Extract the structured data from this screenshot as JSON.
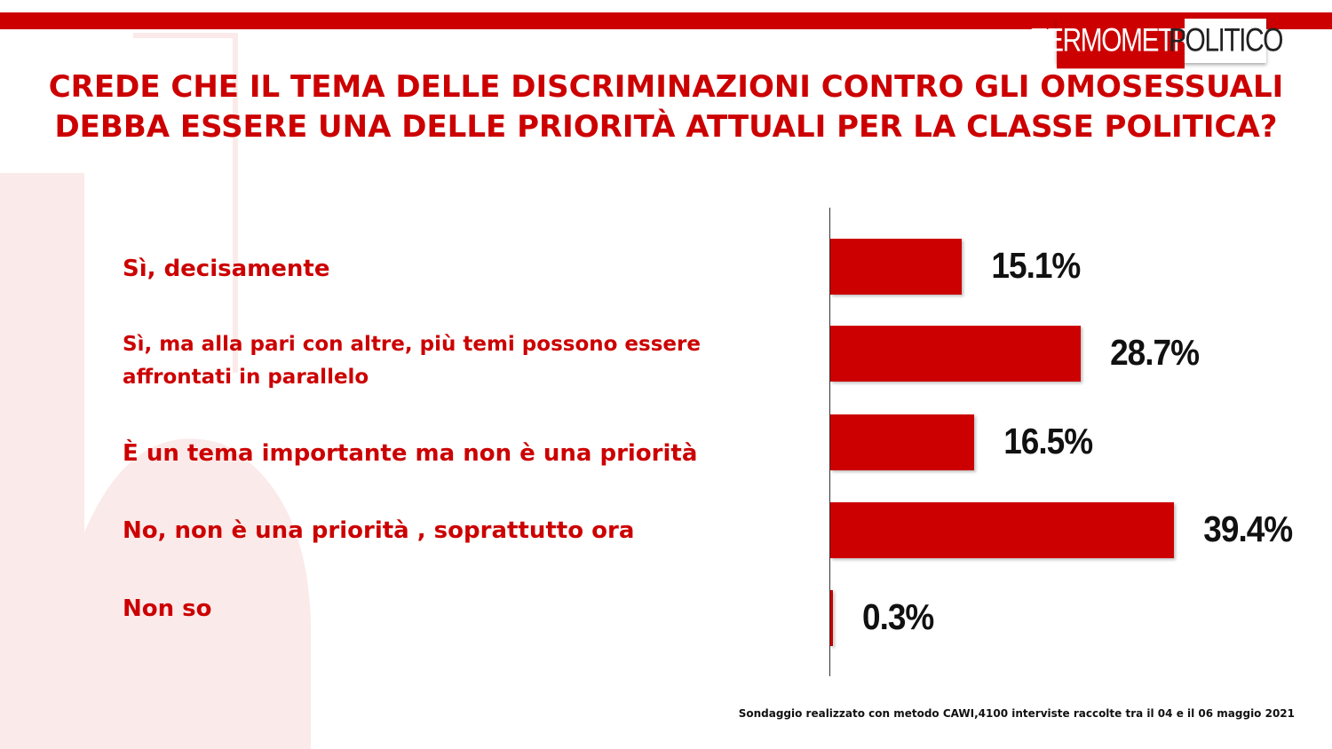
{
  "brand": {
    "logo_part1": "TERMOMETRO",
    "logo_part2": "POLITICO",
    "accent_color": "#cc0000"
  },
  "footnote": "Sondaggio realizzato con metodo CAWI,4100 interviste raccolte tra il 04 e il 06 maggio 2021",
  "chart_data": {
    "type": "bar",
    "orientation": "horizontal",
    "title": "CREDE CHE IL TEMA DELLE DISCRIMINAZIONI CONTRO GLI OMOSESSUALI DEBBA ESSERE UNA DELLE PRIORITÀ ATTUALI PER LA CLASSE POLITICA?",
    "categories": [
      "Sì, decisamente",
      "Sì, ma alla pari con altre, più temi possono essere affrontati in parallelo",
      "È un tema importante ma non è una priorità",
      "No, non è una priorità , soprattutto ora",
      "Non so"
    ],
    "values": [
      15.1,
      28.7,
      16.5,
      39.4,
      0.3
    ],
    "labels": [
      "15.1%",
      "28.7%",
      "16.5%",
      "39.4%",
      "0.3%"
    ],
    "unit": "%",
    "bar_color": "#cc0000",
    "xlim": [
      0,
      42
    ],
    "grid": false,
    "legend": "none"
  }
}
